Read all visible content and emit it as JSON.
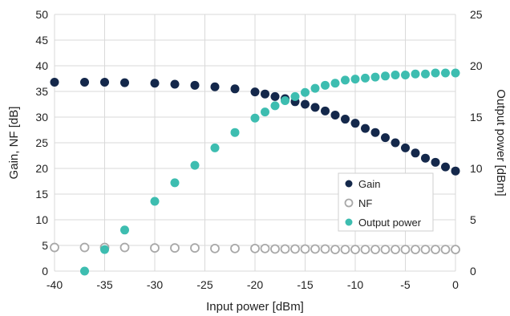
{
  "chart_data": {
    "type": "scatter",
    "xlabel": "Input power [dBm]",
    "ylabel_left": "Gain, NF [dB]",
    "ylabel_right": "Output power [dBm]",
    "xlim": [
      -40,
      0
    ],
    "ylim_left": [
      0,
      50
    ],
    "ylim_right": [
      0,
      25
    ],
    "xticks": [
      "-40",
      "-35",
      "-30",
      "-25",
      "-20",
      "-15",
      "-10",
      "-5",
      "0"
    ],
    "yticks_left": [
      "0",
      "5",
      "10",
      "15",
      "20",
      "25",
      "30",
      "35",
      "40",
      "45",
      "50"
    ],
    "yticks_right": [
      "0",
      "5",
      "10",
      "15",
      "20",
      "25"
    ],
    "grid": true,
    "legend_position": "bottom-right",
    "colors": {
      "gain": "#14284b",
      "nf": "#a8a8a8",
      "output": "#3dbdb0",
      "grid": "#d9d9d9"
    },
    "series": [
      {
        "name": "Gain",
        "axis": "left",
        "marker": "filled-circle",
        "x": [
          -40,
          -37,
          -35,
          -33,
          -30,
          -28,
          -26,
          -24,
          -22,
          -20,
          -19,
          -18,
          -17,
          -16,
          -15,
          -14,
          -13,
          -12,
          -11,
          -10,
          -9,
          -8,
          -7,
          -6,
          -5,
          -4,
          -3,
          -2,
          -1,
          0
        ],
        "y": [
          36.8,
          36.8,
          36.8,
          36.7,
          36.6,
          36.4,
          36.2,
          35.9,
          35.5,
          34.9,
          34.5,
          34.0,
          33.6,
          33.0,
          32.5,
          31.9,
          31.2,
          30.4,
          29.6,
          28.8,
          27.8,
          27.0,
          26.0,
          25.0,
          24.0,
          23.0,
          22.0,
          21.2,
          20.3,
          19.5
        ]
      },
      {
        "name": "NF",
        "axis": "left",
        "marker": "hollow-circle",
        "x": [
          -40,
          -37,
          -35,
          -33,
          -30,
          -28,
          -26,
          -24,
          -22,
          -20,
          -19,
          -18,
          -17,
          -16,
          -15,
          -14,
          -13,
          -12,
          -11,
          -10,
          -9,
          -8,
          -7,
          -6,
          -5,
          -4,
          -3,
          -2,
          -1,
          0
        ],
        "y": [
          4.6,
          4.6,
          4.6,
          4.6,
          4.5,
          4.5,
          4.5,
          4.4,
          4.4,
          4.4,
          4.4,
          4.3,
          4.3,
          4.3,
          4.3,
          4.3,
          4.3,
          4.2,
          4.2,
          4.2,
          4.2,
          4.2,
          4.2,
          4.2,
          4.2,
          4.2,
          4.2,
          4.2,
          4.2,
          4.2
        ]
      },
      {
        "name": "Output power",
        "axis": "right",
        "marker": "filled-circle",
        "x": [
          -37,
          -35,
          -33,
          -30,
          -28,
          -26,
          -24,
          -22,
          -20,
          -19,
          -18,
          -17,
          -16,
          -15,
          -14,
          -13,
          -12,
          -11,
          -10,
          -9,
          -8,
          -7,
          -6,
          -5,
          -4,
          -3,
          -2,
          -1,
          0
        ],
        "y": [
          0.0,
          2.1,
          4.0,
          6.8,
          8.6,
          10.3,
          12.0,
          13.5,
          14.9,
          15.5,
          16.1,
          16.6,
          17.0,
          17.4,
          17.8,
          18.1,
          18.3,
          18.6,
          18.7,
          18.8,
          18.9,
          19.0,
          19.1,
          19.1,
          19.2,
          19.2,
          19.3,
          19.3,
          19.3
        ]
      }
    ]
  }
}
